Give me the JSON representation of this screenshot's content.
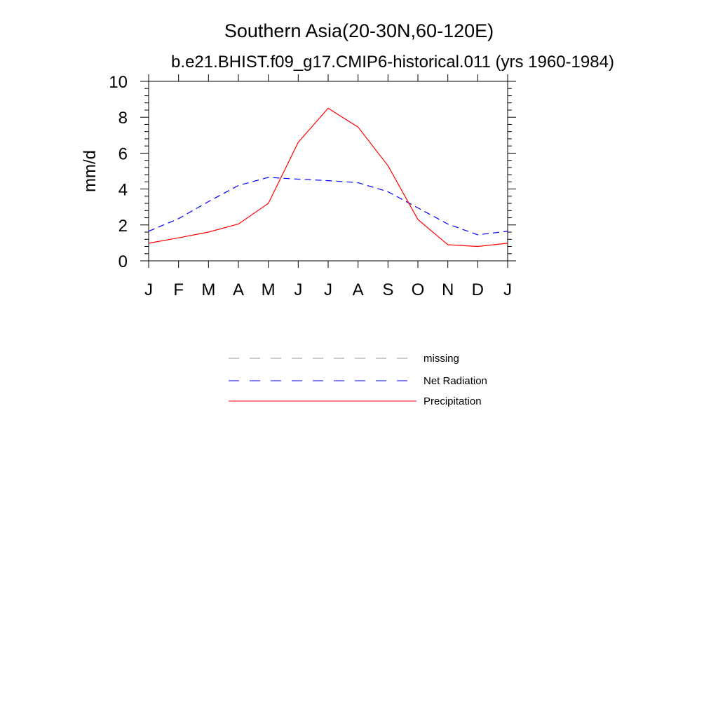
{
  "chart_data": {
    "type": "line",
    "title": "Southern Asia(20-30N,60-120E)",
    "subtitle": "b.e21.BHIST.f09_g17.CMIP6-historical.011 (yrs 1960-1984)",
    "ylabel": "mm/d",
    "xlabel": "",
    "x_tick_labels": [
      "J",
      "F",
      "M",
      "A",
      "M",
      "J",
      "J",
      "A",
      "S",
      "O",
      "N",
      "D",
      "J"
    ],
    "y_tick_labels": [
      "0",
      "2",
      "4",
      "6",
      "8",
      "10"
    ],
    "ylim": [
      0,
      10
    ],
    "grid": false,
    "legend_position": "below",
    "series": [
      {
        "name": "missing",
        "color": "#999999",
        "dash": "dashed",
        "values": []
      },
      {
        "name": "Net Radiation",
        "color": "#0000ff",
        "dash": "dashed",
        "values": [
          1.65,
          2.35,
          3.3,
          4.2,
          4.65,
          4.55,
          4.47,
          4.35,
          3.85,
          2.95,
          2.05,
          1.45,
          1.65
        ]
      },
      {
        "name": "Precipitation",
        "color": "#ff0000",
        "dash": "solid",
        "values": [
          0.98,
          1.28,
          1.6,
          2.05,
          3.2,
          6.6,
          8.5,
          7.45,
          5.3,
          2.3,
          0.9,
          0.8,
          0.98
        ]
      }
    ]
  }
}
